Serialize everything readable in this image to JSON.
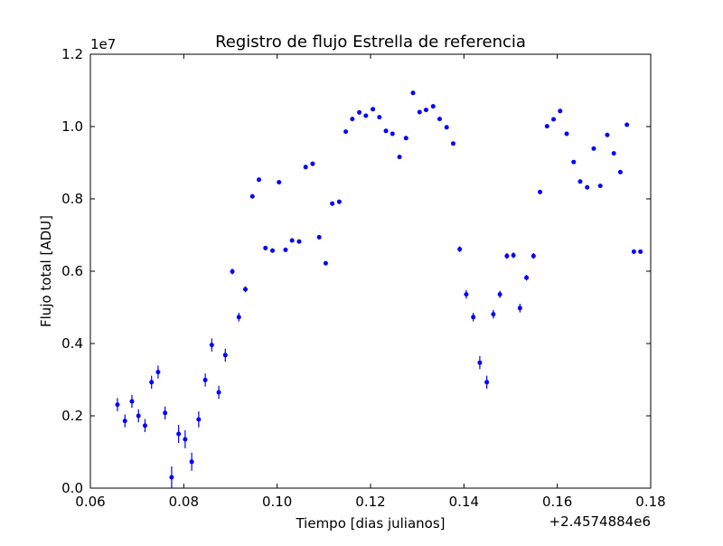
{
  "chart_data": {
    "type": "scatter",
    "title": "Registro de flujo Estrella de referencia",
    "xlabel": "Tiempo [dias julianos]",
    "ylabel": "Flujo total [ADU]",
    "x_offset_label": "+2.4574884e6",
    "y_scale_label": "1e7",
    "xlim": [
      0.06,
      0.18
    ],
    "ylim": [
      0.0,
      1.2
    ],
    "xticks": [
      "0.06",
      "0.08",
      "0.10",
      "0.12",
      "0.14",
      "0.16",
      "0.18"
    ],
    "yticks": [
      "0.0",
      "0.2",
      "0.4",
      "0.6",
      "0.8",
      "1.0",
      "1.2"
    ],
    "grid": false,
    "series": [
      {
        "color": "#0000ff",
        "x": [
          0.0658,
          0.0674,
          0.0689,
          0.0703,
          0.0717,
          0.0731,
          0.0745,
          0.076,
          0.0774,
          0.0789,
          0.0803,
          0.0817,
          0.0832,
          0.0846,
          0.086,
          0.0875,
          0.0889,
          0.0904,
          0.0918,
          0.0932,
          0.0947,
          0.0961,
          0.0975,
          0.099,
          0.1004,
          0.1018,
          0.1032,
          0.1047,
          0.1061,
          0.1076,
          0.109,
          0.1104,
          0.1118,
          0.1133,
          0.1147,
          0.1161,
          0.1176,
          0.119,
          0.1205,
          0.1219,
          0.1233,
          0.1247,
          0.1262,
          0.1276,
          0.1291,
          0.1305,
          0.1319,
          0.1334,
          0.1348,
          0.1363,
          0.1377,
          0.1391,
          0.1405,
          0.142,
          0.1434,
          0.1449,
          0.1463,
          0.1477,
          0.1492,
          0.1506,
          0.152,
          0.1534,
          0.1549,
          0.1563,
          0.1578,
          0.1592,
          0.1606,
          0.162,
          0.1635,
          0.1649,
          0.1664,
          0.1678,
          0.1692,
          0.1707,
          0.1721,
          0.1735,
          0.1749,
          0.1764,
          0.1778
        ],
        "y": [
          0.231,
          0.186,
          0.24,
          0.2,
          0.173,
          0.293,
          0.321,
          0.208,
          0.03,
          0.15,
          0.135,
          0.073,
          0.19,
          0.299,
          0.396,
          0.265,
          0.368,
          0.599,
          0.473,
          0.55,
          0.807,
          0.853,
          0.664,
          0.657,
          0.846,
          0.659,
          0.685,
          0.682,
          0.888,
          0.897,
          0.694,
          0.622,
          0.787,
          0.792,
          0.986,
          1.021,
          1.039,
          1.03,
          1.048,
          1.026,
          0.988,
          0.98,
          0.916,
          0.968,
          1.093,
          1.04,
          1.046,
          1.056,
          1.021,
          0.998,
          0.953,
          0.661,
          0.536,
          0.473,
          0.347,
          0.293,
          0.481,
          0.536,
          0.642,
          0.644,
          0.498,
          0.582,
          0.642,
          0.819,
          1.001,
          1.02,
          1.043,
          0.98,
          0.902,
          0.848,
          0.832,
          0.939,
          0.836,
          0.977,
          0.926,
          0.874,
          1.005,
          0.654,
          0.654
        ],
        "yerr": [
          0.018,
          0.018,
          0.018,
          0.018,
          0.018,
          0.018,
          0.018,
          0.018,
          0.03,
          0.025,
          0.025,
          0.025,
          0.022,
          0.018,
          0.018,
          0.018,
          0.018,
          0.008,
          0.012,
          0.008,
          0.006,
          0.006,
          0.006,
          0.006,
          0.006,
          0.006,
          0.006,
          0.006,
          0.006,
          0.006,
          0.006,
          0.006,
          0.006,
          0.006,
          0.005,
          0.005,
          0.005,
          0.005,
          0.005,
          0.005,
          0.005,
          0.005,
          0.005,
          0.005,
          0.005,
          0.005,
          0.005,
          0.005,
          0.005,
          0.005,
          0.005,
          0.008,
          0.012,
          0.012,
          0.018,
          0.018,
          0.012,
          0.01,
          0.008,
          0.008,
          0.012,
          0.008,
          0.008,
          0.006,
          0.005,
          0.005,
          0.005,
          0.005,
          0.005,
          0.005,
          0.005,
          0.005,
          0.005,
          0.005,
          0.005,
          0.005,
          0.005,
          0.006,
          0.006
        ]
      }
    ]
  }
}
